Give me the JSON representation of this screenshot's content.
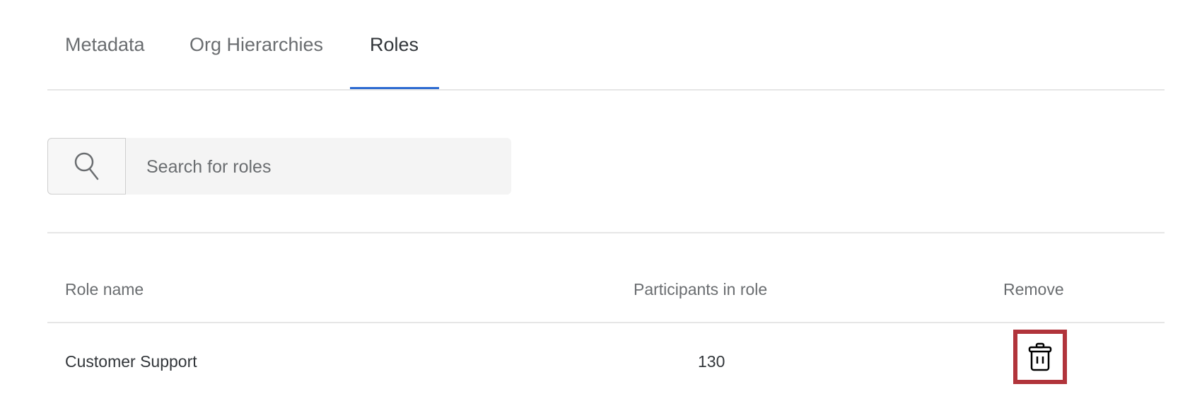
{
  "tabs": [
    {
      "label": "Metadata"
    },
    {
      "label": "Org Hierarchies"
    },
    {
      "label": "Roles",
      "active": true
    }
  ],
  "search": {
    "placeholder": "Search for roles",
    "value": "",
    "icon": "search-icon"
  },
  "table": {
    "headers": {
      "role_name": "Role name",
      "participants": "Participants in role",
      "remove": "Remove"
    },
    "rows": [
      {
        "role_name": "Customer Support",
        "participants": "130",
        "remove_icon": "trash-icon"
      }
    ]
  },
  "colors": {
    "accent": "#2c6ad1",
    "highlight": "#b1343b"
  }
}
